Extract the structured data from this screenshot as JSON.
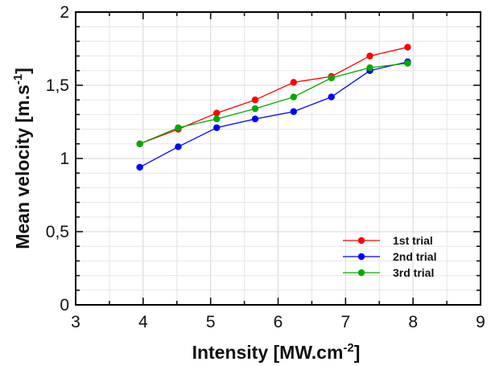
{
  "chart_data": {
    "type": "line",
    "xlabel": {
      "main": "Intensity [MW.cm",
      "sup": "-2",
      "close": "]"
    },
    "ylabel": {
      "main": "Mean velocity [m.s",
      "sup": "-1",
      "close": "]"
    },
    "xlim": [
      3,
      9
    ],
    "ylim": [
      0,
      2
    ],
    "x_ticks": [
      3,
      4,
      5,
      6,
      7,
      8,
      9
    ],
    "y_ticks": [
      0,
      0.5,
      1,
      1.5,
      2
    ],
    "x_tick_labels": [
      "3",
      "4",
      "5",
      "6",
      "7",
      "8",
      "9"
    ],
    "y_tick_labels": [
      "0",
      "0,5",
      "1",
      "1,5",
      "2"
    ],
    "grid": true,
    "legend_position": "bottom-right",
    "x": [
      3.95,
      4.52,
      5.09,
      5.66,
      6.23,
      6.79,
      7.36,
      7.92
    ],
    "series": [
      {
        "name": "1st trial",
        "color": "#ff0000",
        "values": [
          1.1,
          1.2,
          1.31,
          1.4,
          1.52,
          1.56,
          1.7,
          1.76
        ]
      },
      {
        "name": "2nd trial",
        "color": "#0000ff",
        "values": [
          0.94,
          1.08,
          1.21,
          1.27,
          1.32,
          1.42,
          1.6,
          1.66
        ]
      },
      {
        "name": "3rd trial",
        "color": "#00aa00",
        "values": [
          1.1,
          1.21,
          1.27,
          1.34,
          1.42,
          1.55,
          1.62,
          1.65
        ]
      }
    ]
  }
}
